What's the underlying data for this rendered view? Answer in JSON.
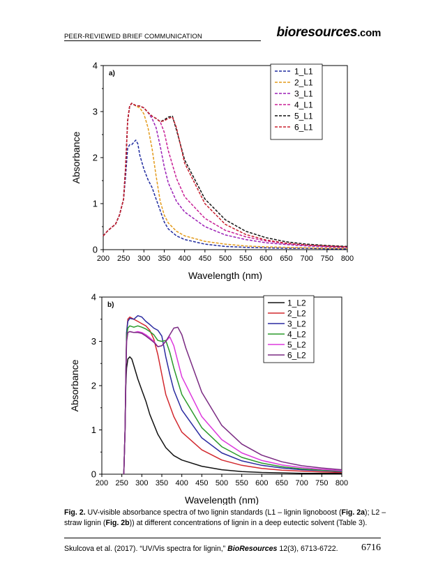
{
  "header": {
    "left": "PEER-REVIEWED BRIEF COMMUNICATION",
    "journal": "bioresources",
    "journal_suffix": ".com"
  },
  "caption": {
    "fig_label": "Fig. 2.",
    "text_1": " UV-visible absorbance spectra of two lignin standards (L1 – lignin lignoboost (",
    "ref_2a": "Fig. 2a",
    "text_2": "); L2 – straw lignin (",
    "ref_2b": "Fig. 2b",
    "text_3": ")) at different concentrations of lignin in a deep eutectic solvent (Table 3)."
  },
  "footer": {
    "citation": "Skulcova et al. (2017). “UV/Vis spectra for lignin,” ",
    "journal": "BioResources",
    "volume": " 12(3), 6713-6722.",
    "page": "6716"
  },
  "chart_data": [
    {
      "type": "line",
      "panel_label": "a)",
      "xlabel": "Wavelength (nm)",
      "ylabel": "Absorbance",
      "xlim": [
        200,
        800
      ],
      "ylim": [
        0,
        4
      ],
      "xticks": [
        200,
        250,
        300,
        350,
        400,
        450,
        500,
        550,
        600,
        650,
        700,
        750,
        800
      ],
      "yticks": [
        0,
        1,
        2,
        3,
        4
      ],
      "legend_position": "top-right",
      "line_style": "dashed",
      "series": [
        {
          "name": "1_L1",
          "color": "#1f2a9e",
          "x": [
            200,
            210,
            220,
            230,
            240,
            250,
            255,
            260,
            265,
            270,
            280,
            285,
            290,
            300,
            310,
            320,
            330,
            340,
            350,
            360,
            380,
            400,
            450,
            500,
            550,
            600,
            650,
            700,
            750,
            800
          ],
          "y": [
            0.3,
            0.4,
            0.48,
            0.55,
            0.75,
            1.1,
            1.6,
            2.2,
            2.28,
            2.28,
            2.38,
            2.3,
            2.05,
            1.75,
            1.52,
            1.35,
            1.1,
            0.85,
            0.6,
            0.45,
            0.3,
            0.22,
            0.12,
            0.07,
            0.05,
            0.04,
            0.03,
            0.03,
            0.02,
            0.02
          ]
        },
        {
          "name": "2_L1",
          "color": "#e39a1a",
          "x": [
            200,
            210,
            220,
            230,
            240,
            250,
            255,
            260,
            265,
            270,
            280,
            290,
            300,
            310,
            320,
            330,
            340,
            350,
            360,
            380,
            400,
            450,
            500,
            550,
            600,
            650,
            700,
            750,
            800
          ],
          "y": [
            0.3,
            0.4,
            0.48,
            0.55,
            0.75,
            1.1,
            1.8,
            2.8,
            3.12,
            3.18,
            3.12,
            3.08,
            2.95,
            2.65,
            2.2,
            1.6,
            1.05,
            0.75,
            0.58,
            0.4,
            0.3,
            0.18,
            0.12,
            0.08,
            0.06,
            0.05,
            0.04,
            0.03,
            0.03
          ]
        },
        {
          "name": "3_L1",
          "color": "#9b1fb6",
          "x": [
            200,
            210,
            220,
            230,
            240,
            250,
            255,
            260,
            265,
            270,
            280,
            290,
            300,
            310,
            320,
            330,
            340,
            350,
            360,
            380,
            400,
            450,
            500,
            550,
            600,
            650,
            700,
            750,
            800
          ],
          "y": [
            0.3,
            0.4,
            0.48,
            0.55,
            0.75,
            1.1,
            1.8,
            2.8,
            3.12,
            3.18,
            3.13,
            3.12,
            3.08,
            2.98,
            2.85,
            2.65,
            2.25,
            1.8,
            1.45,
            1.05,
            0.82,
            0.5,
            0.32,
            0.22,
            0.15,
            0.11,
            0.08,
            0.06,
            0.05
          ]
        },
        {
          "name": "4_L1",
          "color": "#c81e95",
          "x": [
            200,
            210,
            220,
            230,
            240,
            250,
            255,
            260,
            265,
            270,
            280,
            290,
            300,
            310,
            320,
            330,
            340,
            350,
            360,
            380,
            400,
            450,
            500,
            550,
            600,
            650,
            700,
            750,
            800
          ],
          "y": [
            0.3,
            0.4,
            0.48,
            0.55,
            0.75,
            1.1,
            1.8,
            2.8,
            3.12,
            3.18,
            3.13,
            3.12,
            3.08,
            2.98,
            2.9,
            2.85,
            2.78,
            2.55,
            2.15,
            1.55,
            1.15,
            0.68,
            0.42,
            0.28,
            0.19,
            0.13,
            0.1,
            0.07,
            0.06
          ]
        },
        {
          "name": "5_L1",
          "color": "#111111",
          "x": [
            200,
            210,
            220,
            230,
            240,
            250,
            255,
            260,
            265,
            270,
            280,
            290,
            300,
            310,
            320,
            330,
            340,
            350,
            360,
            370,
            380,
            400,
            450,
            500,
            550,
            600,
            650,
            700,
            750,
            800
          ],
          "y": [
            0.3,
            0.4,
            0.48,
            0.55,
            0.75,
            1.1,
            1.8,
            2.8,
            3.12,
            3.18,
            3.13,
            3.12,
            3.08,
            2.98,
            2.9,
            2.85,
            2.78,
            2.82,
            2.88,
            2.9,
            2.6,
            1.95,
            1.1,
            0.65,
            0.4,
            0.26,
            0.17,
            0.12,
            0.09,
            0.07
          ]
        },
        {
          "name": "6_L1",
          "color": "#c8202e",
          "x": [
            200,
            210,
            220,
            230,
            240,
            250,
            255,
            260,
            265,
            270,
            280,
            290,
            300,
            310,
            320,
            330,
            340,
            350,
            360,
            370,
            380,
            400,
            450,
            500,
            550,
            600,
            650,
            700,
            750,
            800
          ],
          "y": [
            0.3,
            0.4,
            0.48,
            0.55,
            0.75,
            1.1,
            1.8,
            2.8,
            3.12,
            3.18,
            3.13,
            3.12,
            3.08,
            2.98,
            2.9,
            2.85,
            2.78,
            2.8,
            2.85,
            2.88,
            2.65,
            1.88,
            1.0,
            0.55,
            0.33,
            0.21,
            0.14,
            0.1,
            0.08,
            0.06
          ]
        }
      ]
    },
    {
      "type": "line",
      "panel_label": "b)",
      "xlabel": "Wavelength (nm)",
      "ylabel": "Absorbance",
      "xlim": [
        200,
        800
      ],
      "ylim": [
        0,
        4
      ],
      "xticks": [
        200,
        250,
        300,
        350,
        400,
        450,
        500,
        550,
        600,
        650,
        700,
        750,
        800
      ],
      "yticks": [
        0,
        1,
        2,
        3,
        4
      ],
      "legend_position": "top-right",
      "line_style": "solid",
      "series": [
        {
          "name": "1_L2",
          "color": "#111111",
          "x": [
            255,
            258,
            260,
            262,
            265,
            270,
            275,
            280,
            290,
            300,
            310,
            320,
            340,
            360,
            380,
            400,
            450,
            500,
            550,
            600,
            650,
            700,
            750,
            800
          ],
          "y": [
            0.0,
            1.0,
            2.0,
            2.4,
            2.6,
            2.65,
            2.6,
            2.45,
            2.15,
            1.9,
            1.65,
            1.35,
            0.9,
            0.6,
            0.42,
            0.32,
            0.18,
            0.1,
            0.06,
            0.04,
            0.03,
            0.02,
            0.02,
            0.02
          ]
        },
        {
          "name": "2_L2",
          "color": "#d2282e",
          "x": [
            255,
            258,
            260,
            262,
            265,
            270,
            280,
            290,
            300,
            310,
            320,
            330,
            340,
            350,
            360,
            380,
            400,
            450,
            500,
            550,
            600,
            650,
            700,
            750,
            800
          ],
          "y": [
            0.0,
            1.0,
            2.2,
            3.2,
            3.5,
            3.55,
            3.5,
            3.45,
            3.4,
            3.35,
            3.25,
            3.05,
            2.7,
            2.25,
            1.8,
            1.3,
            0.95,
            0.55,
            0.32,
            0.2,
            0.13,
            0.09,
            0.07,
            0.05,
            0.04
          ]
        },
        {
          "name": "3_L2",
          "color": "#2a2aa0",
          "x": [
            255,
            258,
            260,
            262,
            265,
            270,
            280,
            290,
            300,
            310,
            320,
            330,
            340,
            350,
            360,
            370,
            380,
            400,
            450,
            500,
            550,
            600,
            650,
            700,
            750,
            800
          ],
          "y": [
            0.0,
            1.0,
            2.2,
            3.2,
            3.45,
            3.52,
            3.5,
            3.58,
            3.55,
            3.45,
            3.38,
            3.3,
            3.25,
            3.12,
            2.65,
            2.25,
            1.9,
            1.45,
            0.82,
            0.48,
            0.3,
            0.2,
            0.14,
            0.1,
            0.08,
            0.06
          ]
        },
        {
          "name": "4_L2",
          "color": "#2a9a2a",
          "x": [
            255,
            258,
            260,
            262,
            265,
            270,
            280,
            290,
            300,
            310,
            320,
            330,
            340,
            350,
            360,
            370,
            380,
            390,
            400,
            450,
            500,
            550,
            600,
            650,
            700,
            750,
            800
          ],
          "y": [
            0.0,
            1.0,
            2.2,
            3.1,
            3.3,
            3.35,
            3.32,
            3.35,
            3.32,
            3.28,
            3.22,
            3.15,
            3.02,
            3.0,
            3.02,
            2.75,
            2.4,
            2.1,
            1.8,
            1.05,
            0.62,
            0.38,
            0.25,
            0.17,
            0.12,
            0.09,
            0.07
          ]
        },
        {
          "name": "5_L2",
          "color": "#dd38dd",
          "x": [
            255,
            258,
            260,
            262,
            265,
            270,
            280,
            290,
            300,
            310,
            320,
            330,
            340,
            350,
            360,
            370,
            380,
            390,
            400,
            450,
            500,
            550,
            600,
            650,
            700,
            750,
            800
          ],
          "y": [
            0.0,
            1.0,
            2.2,
            3.0,
            3.2,
            3.22,
            3.2,
            3.22,
            3.2,
            3.15,
            3.08,
            3.0,
            2.88,
            2.9,
            3.0,
            3.1,
            2.9,
            2.55,
            2.2,
            1.3,
            0.78,
            0.48,
            0.31,
            0.21,
            0.15,
            0.11,
            0.08
          ]
        },
        {
          "name": "6_L2",
          "color": "#7a2a82",
          "x": [
            255,
            258,
            260,
            262,
            265,
            270,
            280,
            290,
            300,
            310,
            320,
            330,
            340,
            350,
            360,
            370,
            380,
            390,
            400,
            410,
            450,
            500,
            550,
            600,
            650,
            700,
            750,
            800
          ],
          "y": [
            0.0,
            1.0,
            2.2,
            3.0,
            3.2,
            3.22,
            3.2,
            3.2,
            3.18,
            3.12,
            3.05,
            2.98,
            2.88,
            2.9,
            3.0,
            3.15,
            3.3,
            3.32,
            3.15,
            2.85,
            1.85,
            1.1,
            0.68,
            0.43,
            0.28,
            0.19,
            0.14,
            0.1
          ]
        }
      ]
    }
  ]
}
